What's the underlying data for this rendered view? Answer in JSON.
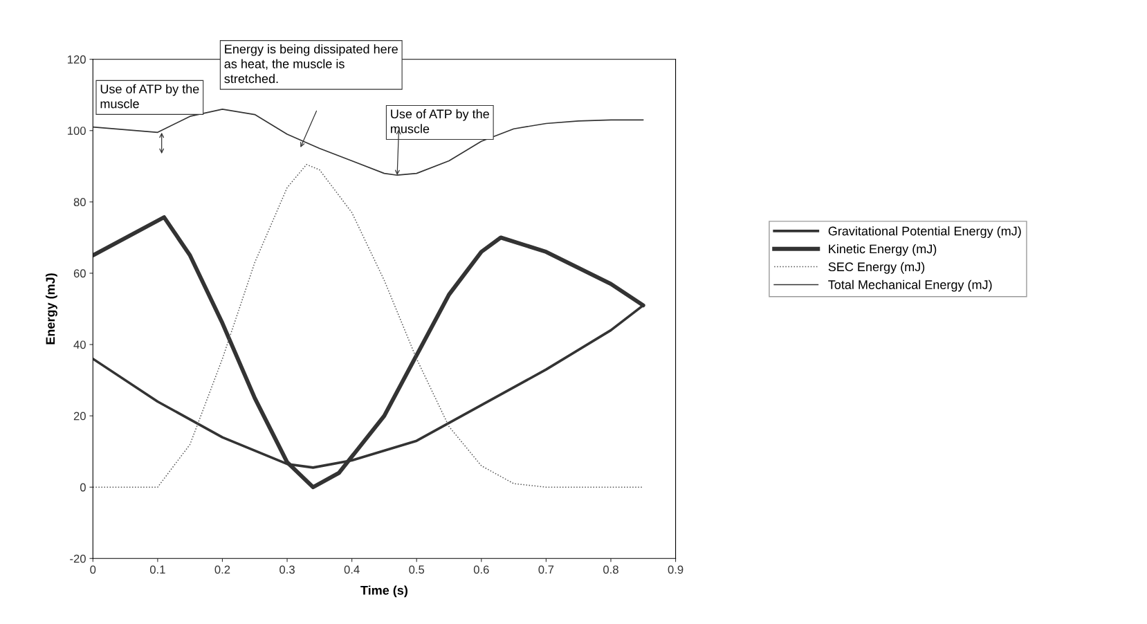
{
  "chart_data": {
    "type": "line",
    "xlabel": "Time (s)",
    "ylabel": "Energy (mJ)",
    "xlim": [
      0,
      0.9
    ],
    "xticks": [
      0,
      0.1,
      0.2,
      0.3,
      0.4,
      0.5,
      0.6,
      0.7,
      0.8,
      0.9
    ],
    "ylim": [
      -20,
      120
    ],
    "yticks": [
      -20,
      0,
      20,
      40,
      60,
      80,
      100,
      120
    ],
    "grid": false,
    "legend": "right",
    "series": [
      {
        "name": "Gravitational Potential Energy (mJ)",
        "color": "#333333",
        "line_style": "solid",
        "x": [
          0,
          0.1,
          0.2,
          0.3,
          0.34,
          0.4,
          0.5,
          0.6,
          0.7,
          0.8,
          0.85
        ],
        "values": [
          36,
          24,
          14,
          6.5,
          5.5,
          7.5,
          13,
          23,
          33,
          44,
          51
        ]
      },
      {
        "name": "Kinetic Energy (mJ)",
        "color": "#333333",
        "line_style": "solid",
        "x": [
          0,
          0.11,
          0.15,
          0.2,
          0.25,
          0.3,
          0.34,
          0.38,
          0.45,
          0.5,
          0.55,
          0.6,
          0.63,
          0.7,
          0.8,
          0.85
        ],
        "values": [
          65,
          75.7,
          65,
          46,
          25,
          7,
          0,
          4,
          20,
          37,
          54,
          66,
          70,
          66,
          57,
          51
        ]
      },
      {
        "name": "SEC Energy (mJ)",
        "color": "#555555",
        "line_style": "dotted",
        "x": [
          0,
          0.1,
          0.15,
          0.2,
          0.25,
          0.3,
          0.33,
          0.35,
          0.4,
          0.45,
          0.5,
          0.55,
          0.6,
          0.65,
          0.7,
          0.85
        ],
        "values": [
          0,
          0,
          12,
          36,
          63,
          84,
          90.5,
          89,
          77,
          58,
          36,
          17,
          6,
          1,
          0,
          0
        ]
      },
      {
        "name": "Total Mechanical Energy (mJ)",
        "color": "#333333",
        "line_style": "solid",
        "x": [
          0,
          0.1,
          0.15,
          0.2,
          0.25,
          0.3,
          0.35,
          0.4,
          0.45,
          0.47,
          0.5,
          0.55,
          0.6,
          0.65,
          0.7,
          0.75,
          0.8,
          0.85
        ],
        "values": [
          101,
          99.5,
          104,
          106,
          104.5,
          99,
          95,
          91.5,
          88,
          87.5,
          88,
          91.5,
          97,
          100.5,
          102,
          102.7,
          103,
          103
        ]
      }
    ],
    "annotations": [
      "Use of ATP by the\nmuscle",
      "Energy is being dissipated here\nas heat, the muscle is\nstretched.",
      {
        "text": "Use of ATP by the\nmuscle",
        "x": 0.47,
        "y": 87.5
      }
    ]
  }
}
